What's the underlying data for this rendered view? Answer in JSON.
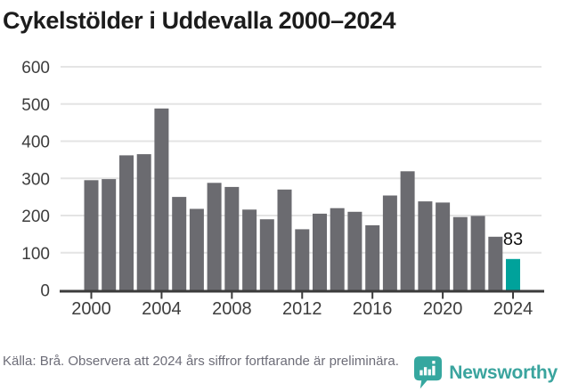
{
  "title": "Cykelstölder i Uddevalla 2000–2024",
  "chart_data": {
    "type": "bar",
    "title": "Cykelstölder i Uddevalla 2000–2024",
    "categories": [
      "2000",
      "2001",
      "2002",
      "2003",
      "2004",
      "2005",
      "2006",
      "2007",
      "2008",
      "2009",
      "2010",
      "2011",
      "2012",
      "2013",
      "2014",
      "2015",
      "2016",
      "2017",
      "2018",
      "2019",
      "2020",
      "2021",
      "2022",
      "2023",
      "2024"
    ],
    "values": [
      295,
      298,
      362,
      365,
      488,
      250,
      218,
      288,
      277,
      216,
      190,
      270,
      163,
      205,
      220,
      210,
      174,
      254,
      319,
      238,
      235,
      196,
      199,
      143,
      83
    ],
    "xlabel": "",
    "ylabel": "",
    "ylim": [
      0,
      600
    ],
    "ytick_step": 100,
    "ytick_labels": [
      "0",
      "100",
      "200",
      "300",
      "400",
      "500",
      "600"
    ],
    "xtick_labels": [
      "2000",
      "2004",
      "2008",
      "2012",
      "2016",
      "2020",
      "2024"
    ],
    "grid": true,
    "legend": null,
    "bar_color": "#6b6b70",
    "grid_color": "#e4e4e4",
    "axis_color": "#3b3b3b",
    "highlight": {
      "category": "2024",
      "color": "#00a29b",
      "label": "83"
    }
  },
  "footer": {
    "source": "Källa: Brå. Observera att 2024 års siffror fortfarande är preliminära.",
    "brand": "Newsworthy",
    "brand_color": "#3aa49e"
  }
}
